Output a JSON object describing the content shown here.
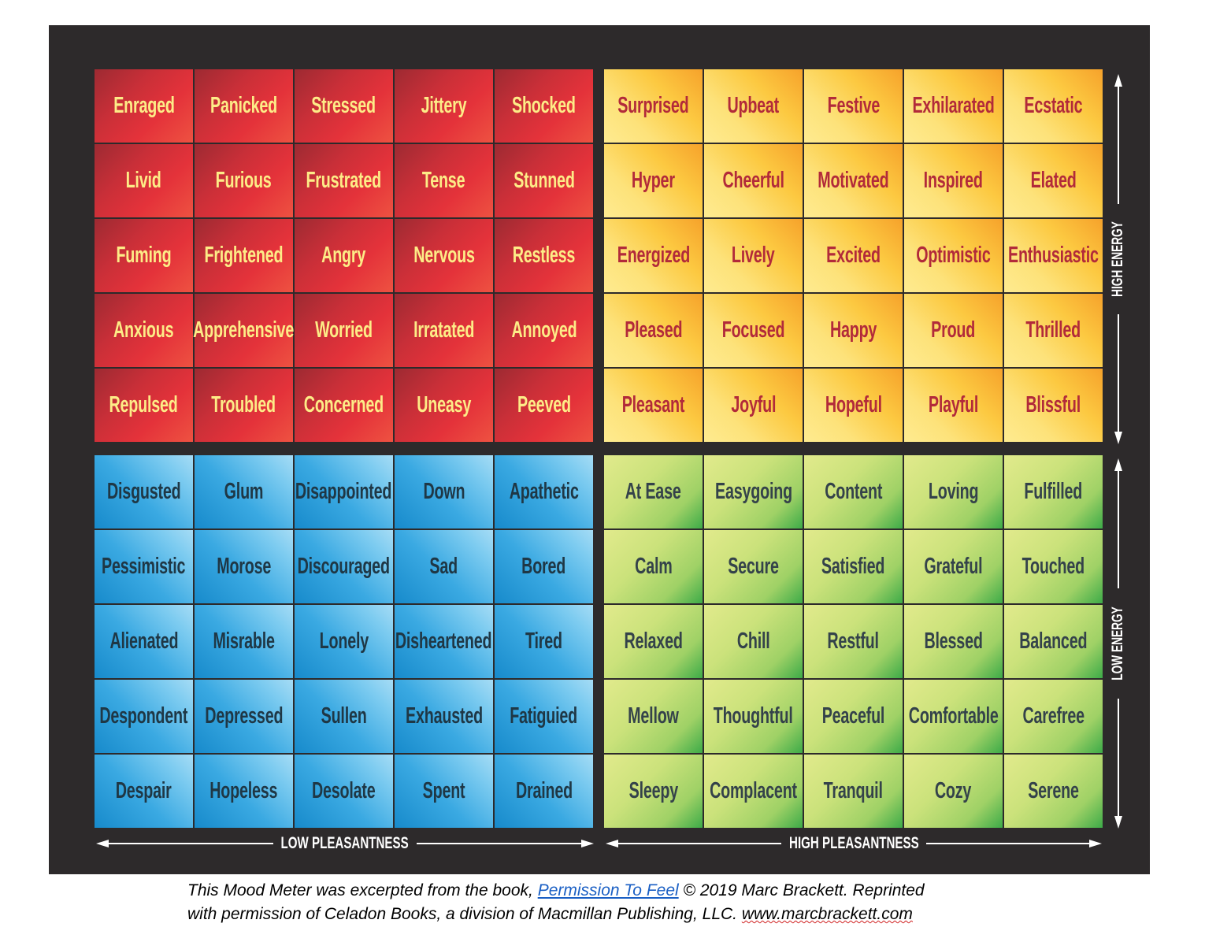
{
  "quadrants": [
    {
      "id": "red",
      "words": [
        "Enraged",
        "Panicked",
        "Stressed",
        "Jittery",
        "Shocked",
        "Livid",
        "Furious",
        "Frustrated",
        "Tense",
        "Stunned",
        "Fuming",
        "Frightened",
        "Angry",
        "Nervous",
        "Restless",
        "Anxious",
        "Apprehensive",
        "Worried",
        "Irratated",
        "Annoyed",
        "Repulsed",
        "Troubled",
        "Concerned",
        "Uneasy",
        "Peeved"
      ]
    },
    {
      "id": "yellow",
      "words": [
        "Surprised",
        "Upbeat",
        "Festive",
        "Exhilarated",
        "Ecstatic",
        "Hyper",
        "Cheerful",
        "Motivated",
        "Inspired",
        "Elated",
        "Energized",
        "Lively",
        "Excited",
        "Optimistic",
        "Enthusiastic",
        "Pleased",
        "Focused",
        "Happy",
        "Proud",
        "Thrilled",
        "Pleasant",
        "Joyful",
        "Hopeful",
        "Playful",
        "Blissful"
      ]
    },
    {
      "id": "blue",
      "words": [
        "Disgusted",
        "Glum",
        "Disappointed",
        "Down",
        "Apathetic",
        "Pessimistic",
        "Morose",
        "Discouraged",
        "Sad",
        "Bored",
        "Alienated",
        "Misrable",
        "Lonely",
        "Disheartened",
        "Tired",
        "Despondent",
        "Depressed",
        "Sullen",
        "Exhausted",
        "Fatiguied",
        "Despair",
        "Hopeless",
        "Desolate",
        "Spent",
        "Drained"
      ]
    },
    {
      "id": "green",
      "words": [
        "At Ease",
        "Easygoing",
        "Content",
        "Loving",
        "Fulfilled",
        "Calm",
        "Secure",
        "Satisfied",
        "Grateful",
        "Touched",
        "Relaxed",
        "Chill",
        "Restful",
        "Blessed",
        "Balanced",
        "Mellow",
        "Thoughtful",
        "Peaceful",
        "Comfortable",
        "Carefree",
        "Sleepy",
        "Complacent",
        "Tranquil",
        "Cozy",
        "Serene"
      ]
    }
  ],
  "colors": {
    "red": "#e4323a",
    "yellow": "#fde27a",
    "blue": "#3aa9e2",
    "green": "#9fd166",
    "background": "#2d2a2b"
  },
  "axes": {
    "low_pleasantness": "LOW PLEASANTNESS",
    "high_pleasantness": "HIGH PLEASANTNESS",
    "high_energy": "HIGH ENERGY",
    "low_energy": "LOW ENERGY"
  },
  "footer": {
    "line1_pre": "This Mood Meter was excerpted from the book, ",
    "book_link": "Permission To Feel",
    "line1_post": " © 2019 Marc Brackett. Reprinted",
    "line2_pre": "with permission of Celadon Books, a division of Macmillan Publishing, LLC. ",
    "website": "www.marcbrackett.com"
  }
}
